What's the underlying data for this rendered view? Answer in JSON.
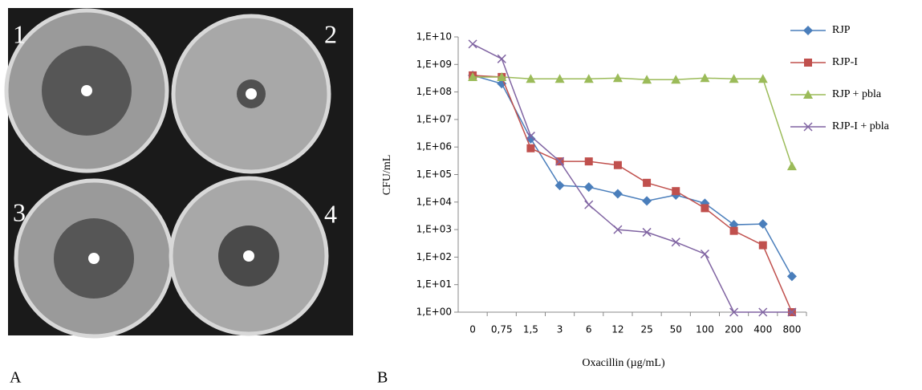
{
  "figure": {
    "panel_labels": [
      "A",
      "B"
    ],
    "plate_labels": [
      "1",
      "2",
      "3",
      "4"
    ]
  },
  "chart_data": {
    "type": "line",
    "x_label": "Oxacillin (µg/mL)",
    "y_label": "CFU/mL",
    "categories": [
      "0",
      "0,75",
      "1,5",
      "3",
      "6",
      "12",
      "25",
      "50",
      "100",
      "200",
      "400",
      "800"
    ],
    "y_scale": "log",
    "ylim": [
      1,
      10000000000
    ],
    "yticks": [
      {
        "value": 1,
        "label": "1,E+00"
      },
      {
        "value": 10,
        "label": "1,E+01"
      },
      {
        "value": 100,
        "label": "1,E+02"
      },
      {
        "value": 1000,
        "label": "1,E+03"
      },
      {
        "value": 10000,
        "label": "1,E+04"
      },
      {
        "value": 100000,
        "label": "1,E+05"
      },
      {
        "value": 1000000,
        "label": "1,E+06"
      },
      {
        "value": 10000000,
        "label": "1,E+07"
      },
      {
        "value": 100000000,
        "label": "1,E+08"
      },
      {
        "value": 1000000000,
        "label": "1,E+09"
      },
      {
        "value": 10000000000,
        "label": "1,E+10"
      }
    ],
    "legend": "right",
    "series": [
      {
        "name": "RJP",
        "color": "#4a7ebb",
        "marker": "diamond",
        "values": [
          400000000,
          200000000,
          2000000,
          40000,
          35000,
          20000,
          11000,
          18000,
          9000,
          1500,
          1600,
          20
        ]
      },
      {
        "name": "RJP-I",
        "color": "#c0504d",
        "marker": "square",
        "values": [
          400000000,
          350000000,
          900000,
          300000,
          300000,
          220000,
          50000,
          25000,
          6000,
          900,
          270,
          1
        ]
      },
      {
        "name": "RJP + pbla",
        "color": "#9bbb59",
        "marker": "triangle",
        "values": [
          350000000,
          350000000,
          300000000,
          300000000,
          300000000,
          320000000,
          280000000,
          280000000,
          320000000,
          300000000,
          300000000,
          200000
        ]
      },
      {
        "name": "RJP-I + pbla",
        "color": "#8064a2",
        "marker": "x",
        "values": [
          5500000000,
          1600000000,
          2500000,
          300000,
          8000,
          1000,
          800,
          350,
          130,
          1,
          1,
          1
        ]
      }
    ]
  }
}
